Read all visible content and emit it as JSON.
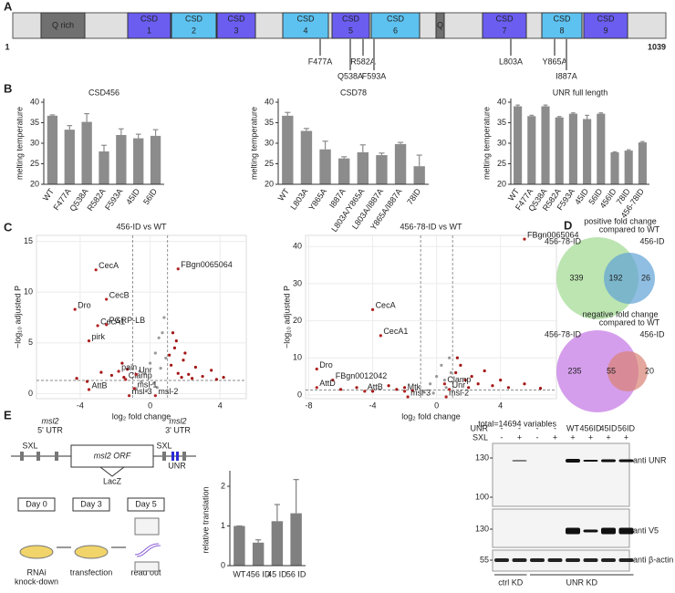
{
  "panel_labels": [
    "A",
    "B",
    "C",
    "D",
    "E"
  ],
  "protein": {
    "start": 1,
    "end": 1039,
    "domains": [
      [
        "Q rich"
      ],
      [
        "CSD",
        1
      ],
      [
        "CSD",
        2
      ],
      [
        "CSD",
        3
      ],
      [
        "CSD",
        4
      ],
      [
        "CSD",
        5
      ],
      [
        "CSD",
        6
      ],
      [
        "Q"
      ],
      [
        "CSD",
        7
      ],
      [
        "CSD",
        8
      ],
      [
        "CSD",
        9
      ]
    ],
    "mutations": [
      "F477A",
      "Q538A",
      "R582A",
      "F593A",
      "L803A",
      "Y865A",
      "I887A"
    ]
  },
  "chart_data": [
    {
      "type": "bar",
      "title": "CSD456",
      "ylabel": "melting temperature",
      "categories": [
        "WT",
        "F477A",
        "Q538A",
        "R582A",
        "F593A",
        "45ID",
        "56ID"
      ],
      "values": [
        36.7,
        33.3,
        35.2,
        28,
        32,
        31.2,
        31.8
      ],
      "errors": [
        0.2,
        1,
        2,
        1.5,
        1.5,
        1,
        1.5
      ],
      "color": "#8c8c8c",
      "ylim": [
        20,
        40
      ],
      "yticks": [
        20,
        25,
        30,
        35,
        40
      ]
    },
    {
      "type": "bar",
      "title": "CSD78",
      "ylabel": "melting temperature",
      "categories": [
        "WT",
        "L803A",
        "Y865A",
        "I887A",
        "L803A/Y865A",
        "L803A/I887A",
        "Y865A/I887A",
        "78ID"
      ],
      "values": [
        36.7,
        33,
        28.5,
        26.3,
        27.8,
        27.1,
        29.8,
        24.4
      ],
      "errors": [
        0.8,
        0.6,
        2,
        0.4,
        1.8,
        0.5,
        0.4,
        2.7
      ],
      "color": "#8c8c8c",
      "ylim": [
        20,
        40
      ],
      "yticks": [
        20,
        25,
        30,
        35,
        40
      ]
    },
    {
      "type": "bar",
      "title": "UNR full length",
      "ylabel": "melting temperature",
      "categories": [
        "WT",
        "F477A",
        "Q538A",
        "R582A",
        "F593A",
        "45ID",
        "56ID",
        "456ID",
        "78ID",
        "456-78ID"
      ],
      "values": [
        39,
        36.6,
        39,
        36.3,
        37.2,
        35.9,
        37.2,
        27.8,
        28.2,
        30.2
      ],
      "errors": [
        0.3,
        0.2,
        0.3,
        0.2,
        0.2,
        0.9,
        0.2,
        0.1,
        0.2,
        0.2
      ],
      "color": "#8c8c8c",
      "ylim": [
        20,
        40
      ],
      "yticks": [
        20,
        25,
        30,
        35,
        40
      ]
    },
    {
      "type": "scatter",
      "title": "456-ID vs WT",
      "xlabel": "log₂ fold change",
      "ylabel": "−log₁₀ adjusted P",
      "xlim": [
        -6.5,
        5.5
      ],
      "ylim": [
        -0.5,
        15.6
      ],
      "xticks": [
        -4,
        0,
        4
      ],
      "yticks": [
        0,
        5,
        10,
        15
      ],
      "grid": true,
      "thresholds": {
        "x": [
          -1,
          1
        ],
        "y": 1.3
      },
      "label_color": "#b22222",
      "series": [
        {
          "color": "#a31515",
          "x": [
            -4.2,
            -3.6,
            -2.8,
            -2.2,
            -1.6,
            -1.3,
            1.2,
            1.4,
            1.6,
            1.9,
            2.2,
            2.6,
            3.0,
            3.5,
            4.2,
            1.3,
            1.5,
            2.0,
            1.1,
            2.4,
            1.8,
            -1.5,
            3.8
          ],
          "y": [
            1.5,
            1.2,
            2.1,
            1.8,
            3.0,
            2.4,
            2.8,
            4.5,
            2.0,
            3.3,
            1.9,
            2.6,
            1.7,
            2.3,
            1.6,
            6,
            5.2,
            4.0,
            3.8,
            1.5,
            1.6,
            1.6,
            1.4
          ]
        },
        {
          "color": "#9a9a9a",
          "x": [
            -0.8,
            -0.5,
            -0.3,
            0,
            0.3,
            0.5,
            0.2,
            0.6,
            0.8,
            0.7,
            -0.2,
            0.4,
            0.9,
            -0.6
          ],
          "y": [
            0.5,
            1.2,
            2,
            3,
            4,
            5.5,
            1,
            2.5,
            7.5,
            6,
            0.3,
            0.6,
            3.5,
            2.2
          ]
        }
      ],
      "labels": [
        {
          "text": "CecA",
          "x": -3.1,
          "y": 12.2
        },
        {
          "text": "CecB",
          "x": -2.5,
          "y": 9.3
        },
        {
          "text": "FBgn0065064",
          "x": 1.6,
          "y": 12.3
        },
        {
          "text": "Dro",
          "x": -4.3,
          "y": 8.3
        },
        {
          "text": "CecA1",
          "x": -3,
          "y": 6.7
        },
        {
          "text": "PGRP-LB",
          "x": -2.5,
          "y": 6.8
        },
        {
          "text": "pirk",
          "x": -3.5,
          "y": 5.2
        },
        {
          "text": "pain",
          "x": -1.8,
          "y": 2.2
        },
        {
          "text": "Clamp",
          "x": -1.4,
          "y": 1.4
        },
        {
          "text": "Unr",
          "x": -0.8,
          "y": 1.9
        },
        {
          "text": "msl-1",
          "x": -0.9,
          "y": 0.5
        },
        {
          "text": "AttB",
          "x": -3.5,
          "y": 0.4
        },
        {
          "text": "msl-3",
          "x": -1.2,
          "y": -0.2
        },
        {
          "text": "msl-2",
          "x": 0.3,
          "y": -0.2
        }
      ]
    },
    {
      "type": "scatter",
      "title": "456-78-ID vs WT",
      "xlabel": "log₂ fold change",
      "ylabel": "−log₁₀ adjusted P",
      "note": "total=14694 variables",
      "xlim": [
        -8.2,
        7.5
      ],
      "ylim": [
        -1,
        43
      ],
      "xticks": [
        -8,
        -4,
        0,
        4
      ],
      "yticks": [
        0,
        10,
        20,
        30,
        40
      ],
      "grid": true,
      "thresholds": {
        "x": [
          -1,
          1
        ],
        "y": 1.3
      },
      "label_color": "#b22222",
      "series": [
        {
          "color": "#a31515",
          "x": [
            -6,
            -5,
            -4,
            -3,
            -2.5,
            -2,
            -1.5,
            1.2,
            1.5,
            1.8,
            2.2,
            2.6,
            3,
            3.5,
            4,
            4.5,
            5.5,
            6.5,
            1.3,
            2
          ],
          "y": [
            1.5,
            2,
            1,
            2.5,
            1.5,
            2,
            1.2,
            6,
            8,
            4,
            5,
            3,
            6.5,
            2.5,
            4,
            2,
            3,
            1.8,
            10,
            2
          ]
        },
        {
          "color": "#9a9a9a",
          "x": [
            -0.8,
            -0.4,
            0,
            0.3,
            0.6,
            0.8,
            -0.2,
            0.5,
            0.9
          ],
          "y": [
            1,
            3,
            5,
            8,
            2,
            10,
            0.5,
            4,
            6
          ]
        }
      ],
      "labels": [
        {
          "text": "FBgn0065064",
          "x": 5.5,
          "y": 42
        },
        {
          "text": "CecA",
          "x": -4,
          "y": 23
        },
        {
          "text": "CecA1",
          "x": -3.5,
          "y": 16
        },
        {
          "text": "Dro",
          "x": -7.5,
          "y": 7
        },
        {
          "text": "FBgn0012042",
          "x": -6.5,
          "y": 4
        },
        {
          "text": "AttD",
          "x": -7.5,
          "y": 2
        },
        {
          "text": "AttB",
          "x": -4.5,
          "y": 1
        },
        {
          "text": "Mtk",
          "x": -2,
          "y": 1
        },
        {
          "text": "Clamp",
          "x": 0.5,
          "y": 3
        },
        {
          "text": "Unr",
          "x": 0.8,
          "y": 1.5
        },
        {
          "text": "msl-3",
          "x": -1.8,
          "y": -0.5
        },
        {
          "text": "msl-2",
          "x": 0.6,
          "y": -0.5
        }
      ]
    },
    {
      "type": "bar",
      "ylabel": "relative translation",
      "categories": [
        "WT",
        "456 ID",
        "45 ID",
        "56 ID"
      ],
      "values": [
        1,
        0.58,
        1.12,
        1.32
      ],
      "errors": [
        0,
        0.07,
        0.42,
        0.85
      ],
      "color": "#808080",
      "ylim": [
        0,
        2.3
      ],
      "yticks": [
        0,
        1,
        2
      ]
    }
  ],
  "venn": [
    {
      "title": "positive fold change",
      "note": "compared to WT",
      "sets": [
        "456-78-ID",
        "456-ID"
      ],
      "counts": [
        339,
        192,
        26
      ]
    },
    {
      "title": "negative fold change",
      "note": "compared to WT",
      "sets": [
        "456-78-ID",
        "456-ID"
      ],
      "counts": [
        235,
        55,
        20
      ]
    }
  ],
  "construct": {
    "utr5": [
      "msl2",
      "5' UTR"
    ],
    "utr3": [
      "msl2",
      "3' UTR"
    ],
    "sxl": [
      "SXL",
      "SXL"
    ],
    "unr": "UNR",
    "orf": "msl2 ORF",
    "reporter": "LacZ"
  },
  "timeline": {
    "days": [
      "Day 0",
      "Day 3",
      "Day 5"
    ],
    "steps": [
      [
        "RNAi",
        "knock-down"
      ],
      [
        "transfection"
      ],
      [
        "read out"
      ]
    ]
  },
  "blot": {
    "rows": [
      {
        "label": "UNR",
        "lanes": [
          "-",
          "-",
          "-",
          "-",
          "WT",
          "456ID",
          "45ID",
          "56ID"
        ]
      },
      {
        "label": "SXL",
        "lanes": [
          "-",
          "+",
          "-",
          "+",
          "+",
          "+",
          "+",
          "+"
        ]
      }
    ],
    "markers": [
      130,
      100,
      130,
      55
    ],
    "antibodies": [
      "anti UNR",
      "anti V5",
      "anti β-actin"
    ],
    "groups": [
      "ctrl KD",
      "UNR KD"
    ]
  }
}
